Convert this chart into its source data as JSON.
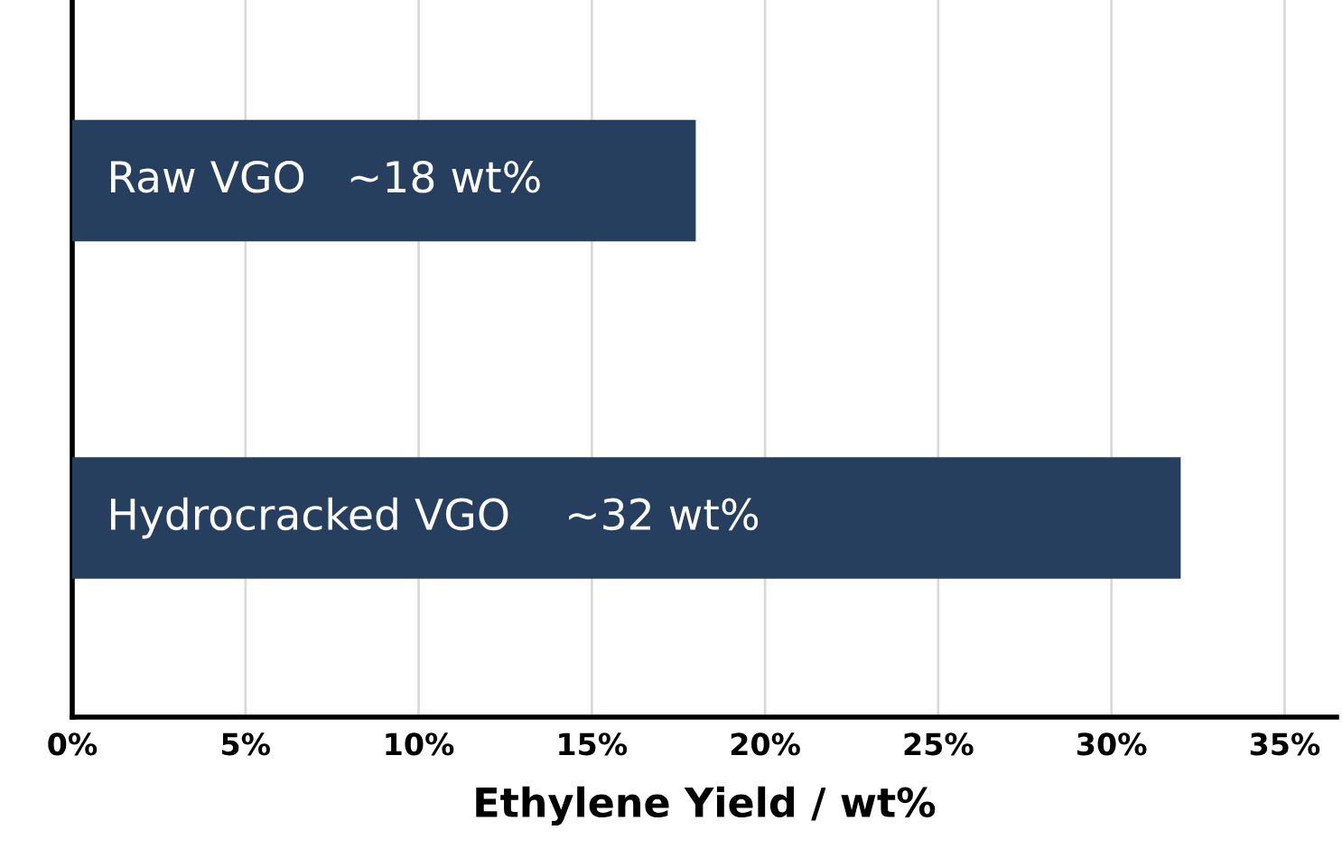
{
  "chart_data": {
    "type": "bar",
    "orientation": "horizontal",
    "xlabel": "Ethylene Yield / wt%",
    "categories": [
      null,
      null
    ],
    "values": [
      18,
      32
    ],
    "color": "#263f5f",
    "value_labels": [
      "Raw VGO   ~18 wt%",
      "Hydrocracked VGO    ~32 wt%"
    ],
    "xlim": [
      0,
      36.5
    ],
    "xticks": [
      {
        "value": 0,
        "label": "0%"
      },
      {
        "value": 5,
        "label": "5%"
      },
      {
        "value": 10,
        "label": "10%"
      },
      {
        "value": 15,
        "label": "15%"
      },
      {
        "value": 20,
        "label": "20%"
      },
      {
        "value": 25,
        "label": "25%"
      },
      {
        "value": 30,
        "label": "30%"
      },
      {
        "value": 35,
        "label": "35%"
      }
    ],
    "grid": "x",
    "legend": false
  }
}
